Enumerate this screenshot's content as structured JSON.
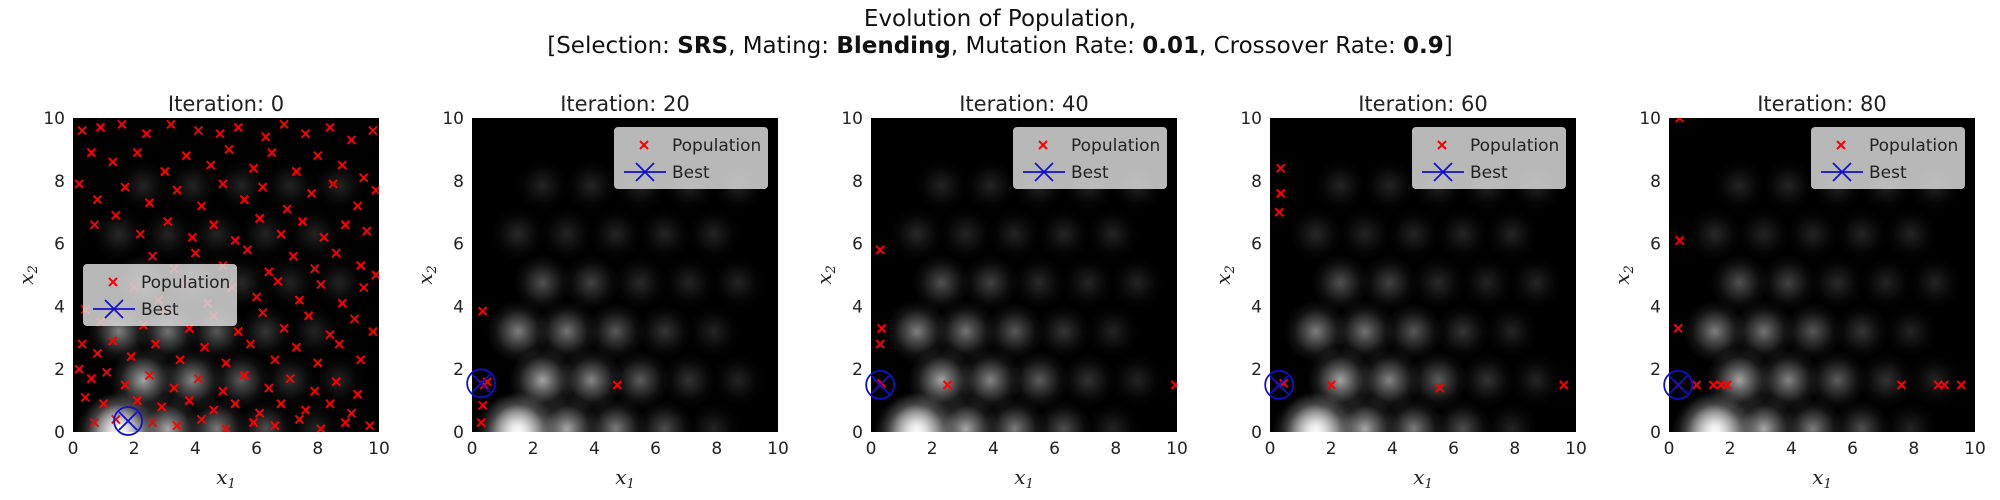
{
  "figure": {
    "title_line1": "Evolution of Population,",
    "title_line2": {
      "selection_label": "[Selection:",
      "selection_value": "SRS",
      "mating_label": ", Mating:",
      "mating_value": "Blending",
      "mutation_label": ", Mutation Rate:",
      "mutation_value": "0.01",
      "crossover_label": ", Crossover Rate:",
      "crossover_value": "0.9",
      "closing": "]"
    }
  },
  "colors": {
    "population": "#ff0000",
    "best": "#1010d0",
    "background": "#000000",
    "legend_bg": "#d8d8d8"
  },
  "chart_data": [
    {
      "type": "scatter",
      "title": "Iteration:  0",
      "xlabel": "x1",
      "ylabel": "x2",
      "xlim": [
        0,
        10
      ],
      "ylim": [
        0,
        10
      ],
      "ticks": [
        0,
        2,
        4,
        6,
        8,
        10
      ],
      "grid": false,
      "background": "grayscale fitness landscape",
      "legend": {
        "position": "center-left",
        "entries": [
          "Population",
          "Best"
        ]
      },
      "best": [
        1.8,
        0.35
      ],
      "population": [
        [
          0.3,
          9.6
        ],
        [
          0.9,
          9.7
        ],
        [
          1.6,
          9.8
        ],
        [
          2.4,
          9.5
        ],
        [
          3.2,
          9.8
        ],
        [
          4.1,
          9.6
        ],
        [
          4.8,
          9.5
        ],
        [
          5.4,
          9.7
        ],
        [
          6.3,
          9.4
        ],
        [
          6.9,
          9.8
        ],
        [
          7.6,
          9.5
        ],
        [
          8.4,
          9.7
        ],
        [
          9.1,
          9.3
        ],
        [
          9.8,
          9.6
        ],
        [
          0.6,
          8.9
        ],
        [
          1.3,
          8.6
        ],
        [
          2.1,
          8.9
        ],
        [
          3.0,
          8.3
        ],
        [
          3.7,
          8.8
        ],
        [
          4.5,
          8.5
        ],
        [
          5.1,
          9.0
        ],
        [
          5.9,
          8.4
        ],
        [
          6.5,
          8.9
        ],
        [
          7.3,
          8.3
        ],
        [
          8.0,
          8.8
        ],
        [
          8.8,
          8.5
        ],
        [
          9.5,
          8.1
        ],
        [
          0.2,
          7.9
        ],
        [
          0.8,
          7.4
        ],
        [
          1.7,
          7.8
        ],
        [
          2.5,
          7.3
        ],
        [
          3.4,
          7.7
        ],
        [
          4.2,
          7.2
        ],
        [
          4.9,
          7.9
        ],
        [
          5.6,
          7.4
        ],
        [
          6.2,
          7.8
        ],
        [
          7.0,
          7.1
        ],
        [
          7.8,
          7.6
        ],
        [
          8.5,
          7.9
        ],
        [
          9.3,
          7.2
        ],
        [
          9.9,
          7.7
        ],
        [
          0.7,
          6.6
        ],
        [
          1.4,
          6.9
        ],
        [
          2.2,
          6.3
        ],
        [
          3.1,
          6.7
        ],
        [
          3.9,
          6.2
        ],
        [
          4.6,
          6.6
        ],
        [
          5.3,
          6.1
        ],
        [
          6.1,
          6.8
        ],
        [
          6.8,
          6.3
        ],
        [
          7.5,
          6.7
        ],
        [
          8.2,
          6.2
        ],
        [
          8.9,
          6.6
        ],
        [
          9.6,
          6.4
        ],
        [
          2.6,
          5.6
        ],
        [
          3.3,
          5.2
        ],
        [
          4.0,
          5.7
        ],
        [
          4.9,
          5.3
        ],
        [
          5.7,
          5.8
        ],
        [
          6.4,
          5.1
        ],
        [
          7.2,
          5.6
        ],
        [
          7.9,
          5.2
        ],
        [
          8.6,
          5.7
        ],
        [
          9.4,
          5.3
        ],
        [
          9.9,
          5.0
        ],
        [
          2.0,
          4.6
        ],
        [
          2.8,
          4.2
        ],
        [
          3.6,
          4.7
        ],
        [
          4.4,
          4.1
        ],
        [
          5.2,
          4.6
        ],
        [
          6.0,
          4.3
        ],
        [
          6.7,
          4.8
        ],
        [
          7.4,
          4.2
        ],
        [
          8.1,
          4.7
        ],
        [
          8.8,
          4.1
        ],
        [
          9.5,
          4.6
        ],
        [
          0.4,
          3.9
        ],
        [
          0.9,
          3.5
        ],
        [
          1.5,
          3.8
        ],
        [
          2.3,
          3.4
        ],
        [
          3.0,
          3.9
        ],
        [
          3.8,
          3.3
        ],
        [
          4.6,
          3.7
        ],
        [
          5.4,
          3.2
        ],
        [
          6.2,
          3.8
        ],
        [
          6.9,
          3.3
        ],
        [
          7.7,
          3.7
        ],
        [
          8.4,
          3.1
        ],
        [
          9.2,
          3.6
        ],
        [
          9.8,
          3.2
        ],
        [
          0.3,
          2.8
        ],
        [
          0.8,
          2.5
        ],
        [
          1.3,
          2.9
        ],
        [
          1.9,
          2.4
        ],
        [
          2.7,
          2.8
        ],
        [
          3.5,
          2.3
        ],
        [
          4.3,
          2.7
        ],
        [
          5.0,
          2.2
        ],
        [
          5.8,
          2.8
        ],
        [
          6.6,
          2.3
        ],
        [
          7.3,
          2.7
        ],
        [
          8.0,
          2.2
        ],
        [
          8.7,
          2.8
        ],
        [
          9.4,
          2.3
        ],
        [
          0.2,
          2.0
        ],
        [
          0.6,
          1.7
        ],
        [
          1.1,
          1.9
        ],
        [
          1.7,
          1.5
        ],
        [
          2.5,
          1.8
        ],
        [
          3.3,
          1.4
        ],
        [
          4.1,
          1.7
        ],
        [
          4.9,
          1.3
        ],
        [
          5.6,
          1.8
        ],
        [
          6.4,
          1.4
        ],
        [
          7.1,
          1.7
        ],
        [
          7.9,
          1.3
        ],
        [
          8.6,
          1.6
        ],
        [
          9.3,
          1.2
        ],
        [
          0.4,
          1.1
        ],
        [
          1.0,
          0.9
        ],
        [
          2.1,
          1.0
        ],
        [
          2.9,
          0.8
        ],
        [
          3.8,
          1.0
        ],
        [
          4.6,
          0.7
        ],
        [
          5.3,
          0.9
        ],
        [
          6.1,
          0.6
        ],
        [
          6.8,
          0.9
        ],
        [
          7.6,
          0.7
        ],
        [
          8.4,
          0.9
        ],
        [
          9.1,
          0.6
        ],
        [
          0.7,
          0.3
        ],
        [
          1.4,
          0.4
        ],
        [
          2.6,
          0.3
        ],
        [
          3.4,
          0.2
        ],
        [
          4.2,
          0.4
        ],
        [
          5.0,
          0.1
        ],
        [
          5.9,
          0.3
        ],
        [
          6.6,
          0.2
        ],
        [
          7.4,
          0.4
        ],
        [
          8.1,
          0.1
        ],
        [
          8.9,
          0.3
        ],
        [
          9.7,
          0.2
        ]
      ]
    },
    {
      "type": "scatter",
      "title": "Iteration:  20",
      "xlabel": "x1",
      "ylabel": "x2",
      "xlim": [
        0,
        10
      ],
      "ylim": [
        0,
        10
      ],
      "ticks": [
        0,
        2,
        4,
        6,
        8,
        10
      ],
      "grid": false,
      "background": "grayscale fitness landscape",
      "legend": {
        "position": "upper-right",
        "entries": [
          "Population",
          "Best"
        ]
      },
      "best": [
        0.3,
        1.55
      ],
      "population": [
        [
          0.3,
          1.55
        ],
        [
          0.4,
          1.5
        ],
        [
          0.5,
          1.6
        ],
        [
          0.35,
          0.85
        ],
        [
          0.3,
          0.3
        ],
        [
          0.35,
          3.85
        ],
        [
          4.75,
          1.5
        ]
      ]
    },
    {
      "type": "scatter",
      "title": "Iteration:  40",
      "xlabel": "x1",
      "ylabel": "x2",
      "xlim": [
        0,
        10
      ],
      "ylim": [
        0,
        10
      ],
      "ticks": [
        0,
        2,
        4,
        6,
        8,
        10
      ],
      "grid": false,
      "background": "grayscale fitness landscape",
      "legend": {
        "position": "upper-right",
        "entries": [
          "Population",
          "Best"
        ]
      },
      "best": [
        0.3,
        1.5
      ],
      "population": [
        [
          0.3,
          1.5
        ],
        [
          0.35,
          1.55
        ],
        [
          0.3,
          5.8
        ],
        [
          0.35,
          3.3
        ],
        [
          0.3,
          2.8
        ],
        [
          2.5,
          1.5
        ],
        [
          9.95,
          1.5
        ]
      ]
    },
    {
      "type": "scatter",
      "title": "Iteration:  60",
      "xlabel": "x1",
      "ylabel": "x2",
      "xlim": [
        0,
        10
      ],
      "ylim": [
        0,
        10
      ],
      "ticks": [
        0,
        2,
        4,
        6,
        8,
        10
      ],
      "grid": false,
      "background": "grayscale fitness landscape",
      "legend": {
        "position": "upper-right",
        "entries": [
          "Population",
          "Best"
        ]
      },
      "best": [
        0.3,
        1.5
      ],
      "population": [
        [
          0.3,
          1.5
        ],
        [
          0.45,
          1.55
        ],
        [
          0.35,
          8.4
        ],
        [
          0.35,
          7.6
        ],
        [
          0.3,
          7.0
        ],
        [
          2.0,
          1.5
        ],
        [
          5.55,
          1.4
        ],
        [
          9.6,
          1.5
        ]
      ]
    },
    {
      "type": "scatter",
      "title": "Iteration:  80",
      "xlabel": "x1",
      "ylabel": "x2",
      "xlim": [
        0,
        10
      ],
      "ylim": [
        0,
        10
      ],
      "ticks": [
        0,
        2,
        4,
        6,
        8,
        10
      ],
      "grid": false,
      "background": "grayscale fitness landscape",
      "legend": {
        "position": "upper-right",
        "entries": [
          "Population",
          "Best"
        ]
      },
      "best": [
        0.3,
        1.5
      ],
      "population": [
        [
          0.3,
          1.5
        ],
        [
          0.35,
          10.0
        ],
        [
          0.35,
          6.1
        ],
        [
          0.3,
          3.3
        ],
        [
          0.9,
          1.5
        ],
        [
          1.45,
          1.5
        ],
        [
          1.7,
          1.5
        ],
        [
          1.9,
          1.5
        ],
        [
          7.6,
          1.5
        ],
        [
          8.8,
          1.5
        ],
        [
          9.0,
          1.5
        ],
        [
          9.55,
          1.5
        ]
      ]
    }
  ]
}
